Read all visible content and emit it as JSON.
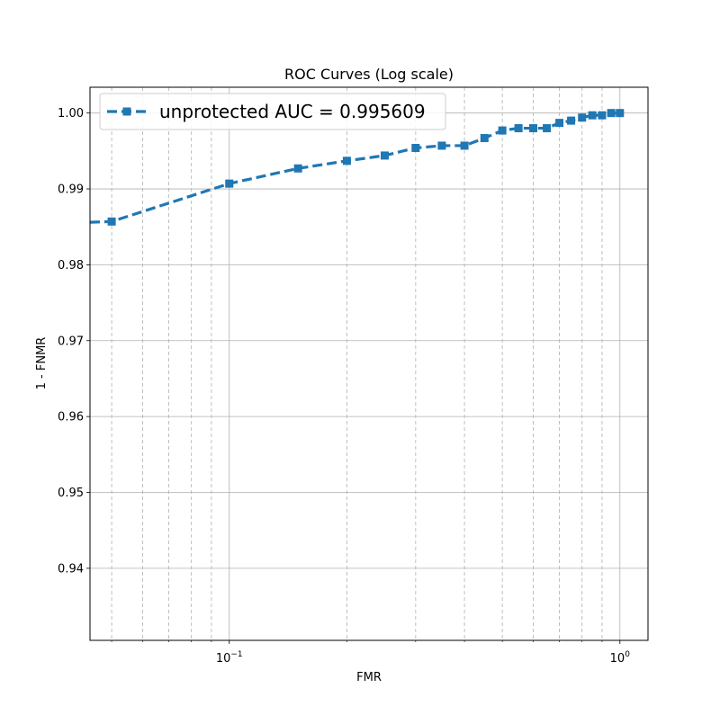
{
  "chart_data": {
    "type": "line",
    "title": "ROC Curves (Log scale)",
    "xlabel": "FMR",
    "ylabel": "1 - FNMR",
    "x_scale": "log",
    "xlim": [
      0.044,
      1.18
    ],
    "ylim": [
      0.9305,
      1.0034
    ],
    "x_major_ticks": [
      {
        "value": 0.1,
        "base": "10",
        "exp": "−1"
      },
      {
        "value": 1.0,
        "base": "10",
        "exp": "0"
      }
    ],
    "x_minor_ticks": [
      0.05,
      0.06,
      0.07,
      0.08,
      0.09,
      0.2,
      0.3,
      0.4,
      0.5,
      0.6,
      0.7,
      0.8,
      0.9
    ],
    "y_ticks": [
      {
        "value": 0.94,
        "label": "0.94"
      },
      {
        "value": 0.95,
        "label": "0.95"
      },
      {
        "value": 0.96,
        "label": "0.96"
      },
      {
        "value": 0.97,
        "label": "0.97"
      },
      {
        "value": 0.98,
        "label": "0.98"
      },
      {
        "value": 0.99,
        "label": "0.99"
      },
      {
        "value": 1.0,
        "label": "1.00"
      }
    ],
    "grid": true,
    "legend_position": "top-left",
    "series": [
      {
        "name": "unprotected AUC = 0.995609",
        "color": "#1f77b4",
        "line_style": "dashed",
        "marker": "square",
        "leading_point": {
          "x": 0.044,
          "y": 0.9856
        },
        "x": [
          0.05,
          0.1,
          0.15,
          0.2,
          0.25,
          0.3,
          0.35,
          0.4,
          0.45,
          0.5,
          0.55,
          0.6,
          0.65,
          0.7,
          0.75,
          0.8,
          0.85,
          0.9,
          0.95,
          1.0
        ],
        "y": [
          0.9857,
          0.9907,
          0.9927,
          0.9937,
          0.9944,
          0.9954,
          0.9957,
          0.9957,
          0.9967,
          0.9977,
          0.998,
          0.998,
          0.998,
          0.9987,
          0.999,
          0.9994,
          0.9997,
          0.9997,
          1.0,
          1.0
        ]
      }
    ]
  }
}
